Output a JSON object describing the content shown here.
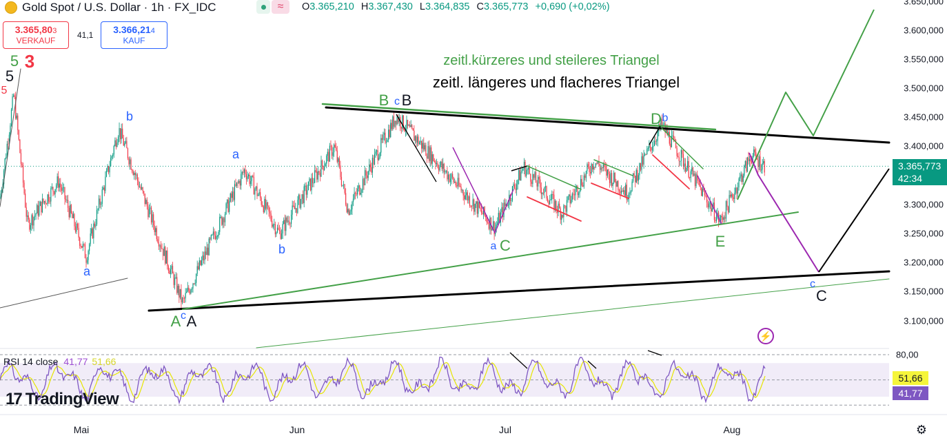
{
  "header": {
    "symbol_title": "Gold Spot / U.S. Dollar · 1h · FX_IDC",
    "symbol_icon": "gold-coin-icon",
    "open_label": "O",
    "open": "3.365,210",
    "high_label": "H",
    "high": "3.367,430",
    "low_label": "L",
    "low": "3.364,835",
    "close_label": "C",
    "close": "3.365,773",
    "change": "+0,690 (+0,02%)"
  },
  "trade": {
    "sell_price_main": "3.365,80",
    "sell_price_small": "3",
    "sell_label": "VERKAUF",
    "spread": "41,1",
    "buy_price_main": "3.366,21",
    "buy_price_small": "4",
    "buy_label": "KAUF"
  },
  "price_axis": {
    "labels": [
      "3.650,000",
      "3.600,000",
      "3.550,000",
      "3.500,000",
      "3.450,000",
      "3.400,000",
      "3.300,000",
      "3.250,000",
      "3.200,000",
      "3.150,000",
      "3.100,000"
    ],
    "current_price": "3.365,773",
    "countdown": "42:34"
  },
  "rsi": {
    "title": "RSI 14 close",
    "value": "41,77",
    "ma_value": "51,66",
    "upper": "80,00"
  },
  "time_axis": {
    "labels": [
      "Mai",
      "Jun",
      "Jul",
      "Aug"
    ]
  },
  "branding": {
    "logo_mark": "17",
    "logo_text": "TradingView"
  },
  "annotations": {
    "triangle_short": "zeitl.kürzeres und steileres Triangel",
    "triangle_long": "zeitl. längeres und flacheres Triangel",
    "wave_labels": [
      {
        "text": "5",
        "color": "#43a047"
      },
      {
        "text": "3",
        "color": "#f23645"
      },
      {
        "text": "5",
        "color": "#131722"
      },
      {
        "text": "5",
        "color": "#f23645"
      },
      {
        "text": "b",
        "color": "#2962ff"
      },
      {
        "text": "a",
        "color": "#2962ff"
      },
      {
        "text": "a",
        "color": "#2962ff"
      },
      {
        "text": "b",
        "color": "#2962ff"
      },
      {
        "text": "B",
        "color": "#43a047"
      },
      {
        "text": "c",
        "color": "#2962ff"
      },
      {
        "text": "B",
        "color": "#131722"
      },
      {
        "text": "A",
        "color": "#43a047"
      },
      {
        "text": "c",
        "color": "#2962ff"
      },
      {
        "text": "A",
        "color": "#131722"
      },
      {
        "text": "a",
        "color": "#2962ff"
      },
      {
        "text": "C",
        "color": "#43a047"
      },
      {
        "text": "D",
        "color": "#43a047"
      },
      {
        "text": "b",
        "color": "#2962ff"
      },
      {
        "text": "E",
        "color": "#43a047"
      },
      {
        "text": "c",
        "color": "#2962ff"
      },
      {
        "text": "C",
        "color": "#131722"
      }
    ]
  },
  "colors": {
    "up": "#089981",
    "down": "#f23645",
    "green_line": "#43a047",
    "black_line": "#000000",
    "purple_line": "#9c27b0",
    "rsi_line": "#7e57c2",
    "rsi_ma": "#e6e600"
  },
  "chart_data": {
    "type": "candlestick",
    "instrument": "Gold Spot / U.S. Dollar",
    "timeframe": "1h",
    "ylim": [
      3080,
      3660
    ],
    "x_ticks": [
      "Mai",
      "Jun",
      "Jul",
      "Aug"
    ],
    "price_path": [
      {
        "t": "start",
        "price": 3310
      },
      {
        "t": "late Apr",
        "price": 3490
      },
      {
        "t": "late Apr",
        "price": 3265
      },
      {
        "t": "early May",
        "price": 3340
      },
      {
        "t": "early May",
        "price": 3210
      },
      {
        "t": "May",
        "price": 3430
      },
      {
        "t": "mid May",
        "price": 3130
      },
      {
        "t": "late May",
        "price": 3360
      },
      {
        "t": "late May",
        "price": 3250
      },
      {
        "t": "early Jun",
        "price": 3400
      },
      {
        "t": "mid Jun",
        "price": 3290
      },
      {
        "t": "mid Jun",
        "price": 3452
      },
      {
        "t": "late Jun",
        "price": 3260
      },
      {
        "t": "early Jul",
        "price": 3365
      },
      {
        "t": "Jul",
        "price": 3285
      },
      {
        "t": "mid Jul",
        "price": 3375
      },
      {
        "t": "mid Jul",
        "price": 3320
      },
      {
        "t": "late Jul",
        "price": 3437
      },
      {
        "t": "late Jul",
        "price": 3270
      },
      {
        "t": "early Aug",
        "price": 3385
      },
      {
        "t": "last",
        "price": 3365.773
      }
    ],
    "last_close": 3365.773,
    "rsi": {
      "period": 14,
      "last": 41.77,
      "ma_last": 51.66,
      "upper_band": 80,
      "lower_band": 20
    }
  }
}
